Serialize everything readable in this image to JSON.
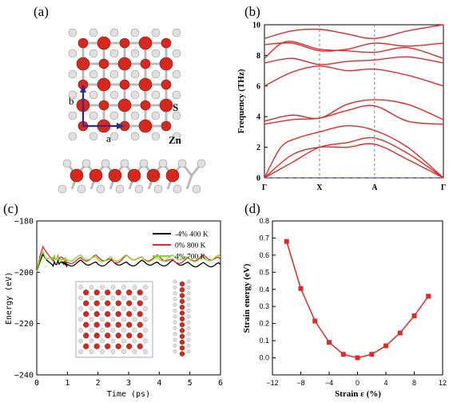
{
  "panels": {
    "a": {
      "label": "(a)",
      "vec_a": "a",
      "vec_b": "b",
      "atom_s": "S",
      "atom_zn": "Zn",
      "colors": {
        "zn": "#d8281e",
        "s": "#e0e0e0",
        "vector": "#2a2a9a"
      }
    },
    "b": {
      "label": "(b)"
    },
    "c": {
      "label": "(c)"
    },
    "d": {
      "label": "(d)"
    }
  },
  "chart_data": [
    {
      "id": "b",
      "type": "line",
      "title": "",
      "ylabel": "Frequency (THz)",
      "ylim": [
        0,
        10
      ],
      "yticks": [
        0,
        2,
        4,
        6,
        8,
        10
      ],
      "kpoints": [
        "Γ",
        "X",
        "A",
        "Γ"
      ],
      "kpos": [
        0,
        1,
        2,
        3.25
      ],
      "line_color": "#e02a2a",
      "zero_line": "dashed",
      "bands": [
        [
          [
            0,
            0
          ],
          [
            0.5,
            1.0
          ],
          [
            1,
            2.0
          ],
          [
            1.5,
            2.3
          ],
          [
            2,
            2.6
          ],
          [
            2.6,
            1.6
          ],
          [
            3.25,
            0
          ]
        ],
        [
          [
            0,
            0
          ],
          [
            0.5,
            1.5
          ],
          [
            1,
            2.0
          ],
          [
            1.5,
            2.0
          ],
          [
            2,
            2.2
          ],
          [
            2.6,
            1.2
          ],
          [
            3.25,
            0
          ]
        ],
        [
          [
            0,
            0
          ],
          [
            0.3,
            2.0
          ],
          [
            0.6,
            2.6
          ],
          [
            1,
            3.0
          ],
          [
            1.5,
            3.4
          ],
          [
            2,
            3.1
          ],
          [
            2.6,
            2.0
          ],
          [
            3.25,
            0
          ]
        ],
        [
          [
            0,
            3.5
          ],
          [
            0.5,
            3.8
          ],
          [
            1,
            3.9
          ],
          [
            1.5,
            4.4
          ],
          [
            2,
            4.7
          ],
          [
            2.6,
            3.7
          ],
          [
            3.25,
            3.5
          ]
        ],
        [
          [
            0,
            3.7
          ],
          [
            0.5,
            4.1
          ],
          [
            1,
            3.9
          ],
          [
            1.5,
            4.8
          ],
          [
            2,
            5.1
          ],
          [
            2.6,
            4.8
          ],
          [
            3.25,
            3.8
          ]
        ],
        [
          [
            0,
            6.0
          ],
          [
            0.5,
            6.9
          ],
          [
            1,
            7.3
          ],
          [
            1.5,
            7.0
          ],
          [
            2,
            7.1
          ],
          [
            2.6,
            6.7
          ],
          [
            3.25,
            6.0
          ]
        ],
        [
          [
            0,
            7.5
          ],
          [
            0.5,
            7.8
          ],
          [
            1,
            7.4
          ],
          [
            1.5,
            7.6
          ],
          [
            2,
            7.7
          ],
          [
            2.6,
            7.9
          ],
          [
            3.25,
            7.5
          ]
        ],
        [
          [
            0,
            7.8
          ],
          [
            0.4,
            8.9
          ],
          [
            1,
            8.4
          ],
          [
            1.5,
            8.3
          ],
          [
            2,
            8.2
          ],
          [
            2.6,
            8.5
          ],
          [
            3.25,
            7.8
          ]
        ],
        [
          [
            0,
            8.7
          ],
          [
            0.5,
            8.8
          ],
          [
            1,
            8.3
          ],
          [
            1.5,
            8.4
          ],
          [
            2,
            8.8
          ],
          [
            2.6,
            8.6
          ],
          [
            3.25,
            8.8
          ]
        ],
        [
          [
            0,
            9.1
          ],
          [
            0.5,
            9.6
          ],
          [
            1,
            9.7
          ],
          [
            1.5,
            9.4
          ],
          [
            2,
            9.1
          ],
          [
            2.6,
            9.6
          ],
          [
            3.25,
            10.0
          ]
        ]
      ]
    },
    {
      "id": "c",
      "type": "line",
      "title": "",
      "xlabel": "Time (ps)",
      "ylabel": "Energy (eV)",
      "xlim": [
        0,
        6
      ],
      "ylim": [
        -240,
        -180
      ],
      "xticks": [
        0,
        1,
        2,
        3,
        4,
        5,
        6
      ],
      "yticks": [
        -240,
        -220,
        -200,
        -180
      ],
      "legend_position": "top-right",
      "series": [
        {
          "name": "-4% 400 K",
          "color": "#000000",
          "x": [
            0,
            0.1,
            0.2,
            0.3,
            0.5,
            0.8,
            1.0,
            1.5,
            2.0,
            2.5,
            3.0,
            3.5,
            4.0,
            4.5,
            5.0,
            5.5,
            6.0
          ],
          "y": [
            -200,
            -196,
            -193,
            -195,
            -197,
            -196,
            -197,
            -196,
            -197,
            -196,
            -197,
            -196,
            -197,
            -196,
            -197,
            -197,
            -197
          ]
        },
        {
          "name": "0% 800 K",
          "color": "#e02a2a",
          "x": [
            0,
            0.1,
            0.2,
            0.3,
            0.5,
            0.8,
            1.0,
            1.5,
            2.0,
            2.5,
            3.0,
            3.5,
            4.0,
            4.5,
            5.0,
            5.5,
            6.0
          ],
          "y": [
            -200,
            -194,
            -190,
            -192,
            -195,
            -194,
            -196,
            -195,
            -194,
            -196,
            -194,
            -195,
            -194,
            -196,
            -195,
            -194,
            -195
          ]
        },
        {
          "name": "4% 700 K",
          "color": "#7ddc1f",
          "x": [
            0,
            0.1,
            0.2,
            0.3,
            0.5,
            0.8,
            1.0,
            1.5,
            2.0,
            2.5,
            3.0,
            3.5,
            4.0,
            4.5,
            5.0,
            5.5,
            6.0
          ],
          "y": [
            -200,
            -195,
            -192,
            -195,
            -194,
            -195,
            -195,
            -194,
            -195,
            -195,
            -194,
            -195,
            -195,
            -194,
            -195,
            -195,
            -194
          ]
        }
      ]
    },
    {
      "id": "d",
      "type": "line",
      "title": "",
      "xlabel": "Strain ε (%)",
      "ylabel": "Strain energy (eV)",
      "xlim": [
        -12,
        12
      ],
      "ylim": [
        -0.1,
        0.8
      ],
      "xticks": [
        -12,
        -8,
        -4,
        0,
        4,
        8,
        12
      ],
      "yticks": [
        0.0,
        0.1,
        0.2,
        0.3,
        0.4,
        0.5,
        0.6,
        0.7,
        0.8
      ],
      "color": "#e02a2a",
      "x": [
        -10,
        -8,
        -6,
        -4,
        -2,
        0,
        2,
        4,
        6,
        8,
        10
      ],
      "y": [
        0.68,
        0.405,
        0.215,
        0.09,
        0.02,
        0.0,
        0.02,
        0.07,
        0.145,
        0.245,
        0.36
      ]
    }
  ]
}
